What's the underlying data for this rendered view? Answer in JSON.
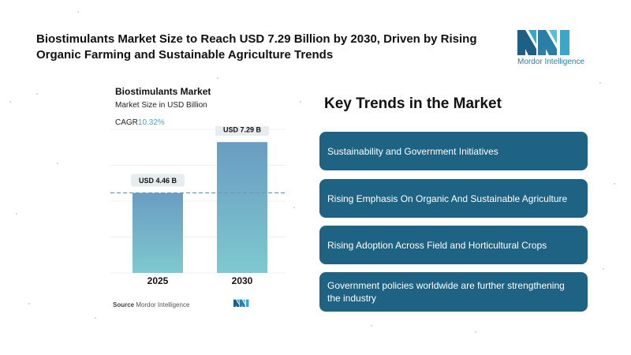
{
  "headline": "Biostimulants Market Size to Reach USD 7.29 Billion by 2030, Driven by Rising Organic Farming and Sustainable Agriculture Trends",
  "logo": {
    "text": "Mordor Intelligence",
    "icon": "mordor-intelligence-logo",
    "color": "#2a7fa8"
  },
  "chart": {
    "title": "Biostimulants Market",
    "subtitle": "Market Size in USD Billion",
    "cagr_label": "CAGR",
    "cagr_value": "10.32%"
  },
  "chart_data": {
    "type": "bar",
    "title": "Biostimulants Market",
    "ylabel": "Market Size in USD Billion",
    "categories": [
      "2025",
      "2030"
    ],
    "values": [
      4.46,
      7.29
    ],
    "data_labels": [
      "USD 4.46 B",
      "USD 7.29 B"
    ],
    "ylim": [
      0,
      8
    ],
    "grid": true,
    "reference_line_value": 4.46,
    "colors": {
      "bar_top": "#6a9cc2",
      "bar_bottom": "#7ec9cf",
      "label_bg": "#e7ecef",
      "reference_line": "#6f97b8"
    }
  },
  "source": {
    "label": "Source",
    "text": "Mordor Intelligence"
  },
  "trends": {
    "title": "Key Trends in the Market",
    "items": [
      "Sustainability and Government Initiatives",
      "Rising Emphasis On Organic And Sustainable Agriculture",
      "Rising Adoption Across Field and Horticultural Crops",
      "Government policies worldwide are further strengthening the industry"
    ],
    "color": "#1e6383"
  }
}
